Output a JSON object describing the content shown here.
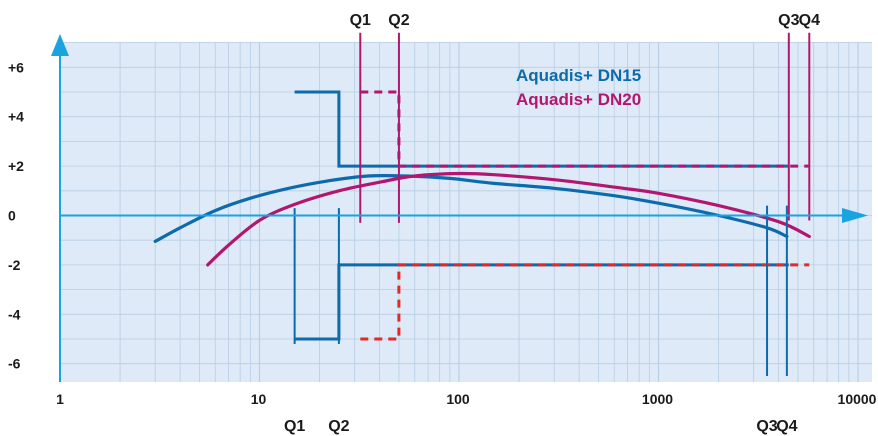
{
  "chart_data": {
    "type": "line",
    "title": "",
    "xlabel": "",
    "ylabel": "",
    "xscale": "log",
    "xlim": [
      1,
      10000
    ],
    "ylim": [
      -7,
      7
    ],
    "grid": true,
    "x_tick_labels": [
      "1",
      "10",
      "100",
      "1000",
      "10000"
    ],
    "y_tick_labels": [
      "+6",
      "+4",
      "+2",
      "0",
      "-2",
      "-4",
      "-6"
    ],
    "legend_position": "top-right",
    "colors": {
      "dn15": "#0d6aad",
      "dn20": "#b3166f",
      "limit_dn20": "#e02a2a",
      "plot_bg": "#deeaf7",
      "grid": "#b8cde3",
      "axis_arrow": "#19a3e0"
    },
    "series": [
      {
        "name": "Aquadis+ DN15",
        "type": "curve",
        "color": "#0d6aad",
        "x": [
          3.0,
          4.0,
          6.0,
          9.0,
          14.0,
          22.0,
          35.0,
          55.0,
          90.0,
          150.0,
          300.0,
          600.0,
          1000.0,
          2000.0,
          3500.0,
          4400.0
        ],
        "y": [
          -1.05,
          -0.5,
          0.2,
          0.7,
          1.1,
          1.4,
          1.6,
          1.6,
          1.5,
          1.3,
          1.1,
          0.8,
          0.5,
          0.0,
          -0.5,
          -0.85
        ]
      },
      {
        "name": "Aquadis+ DN20",
        "type": "curve",
        "color": "#b3166f",
        "x": [
          5.5,
          7.0,
          10.0,
          15.0,
          25.0,
          40.0,
          60.0,
          100.0,
          150.0,
          300.0,
          600.0,
          1000.0,
          2000.0,
          4000.0,
          5700.0
        ],
        "y": [
          -2.0,
          -1.2,
          -0.2,
          0.45,
          1.0,
          1.35,
          1.6,
          1.7,
          1.65,
          1.45,
          1.15,
          0.9,
          0.4,
          -0.25,
          -0.85
        ]
      },
      {
        "name": "",
        "type": "upper-limit",
        "color": "#0d6aad",
        "dashed": false,
        "x": [
          15.0,
          25.0,
          25.0,
          4500.0
        ],
        "y": [
          5,
          5,
          2,
          2
        ]
      },
      {
        "name": "",
        "type": "lower-limit",
        "color": "#0d6aad",
        "dashed": false,
        "x": [
          15.0,
          25.0,
          25.0,
          4500.0
        ],
        "y": [
          -5,
          -5,
          -2,
          -2
        ]
      },
      {
        "name": "",
        "type": "upper-limit",
        "color": "#b3166f",
        "dashed": true,
        "x": [
          32.0,
          50.0,
          50.0,
          5700.0
        ],
        "y": [
          5,
          5,
          2,
          2
        ]
      },
      {
        "name": "",
        "type": "lower-limit",
        "color": "#e02a2a",
        "dashed": true,
        "x": [
          32.0,
          50.0,
          50.0,
          5700.0
        ],
        "y": [
          -5,
          -5,
          -2,
          -2
        ]
      }
    ],
    "annotations": [
      {
        "label": "Q1",
        "x": 15.0,
        "y_from": -5.2,
        "y_to": 0.3,
        "color": "#0d6aad",
        "placement": "bottom"
      },
      {
        "label": "Q2",
        "x": 25.0,
        "y_from": -5.2,
        "y_to": 0.3,
        "color": "#0d6aad",
        "placement": "bottom"
      },
      {
        "label": "Q3",
        "x": 3500.0,
        "y_from": -6.5,
        "y_to": 0.4,
        "color": "#0d6aad",
        "placement": "bottom"
      },
      {
        "label": "Q4",
        "x": 4400.0,
        "y_from": -6.5,
        "y_to": 0.4,
        "color": "#0d6aad",
        "placement": "bottom"
      },
      {
        "label": "Q1",
        "x": 32.0,
        "y_from": -0.3,
        "y_to": 7.4,
        "color": "#b3166f",
        "placement": "top"
      },
      {
        "label": "Q2",
        "x": 50.0,
        "y_from": -0.3,
        "y_to": 7.4,
        "color": "#b3166f",
        "placement": "top"
      },
      {
        "label": "Q3",
        "x": 4500.0,
        "y_from": -0.2,
        "y_to": 7.4,
        "color": "#b3166f",
        "placement": "top"
      },
      {
        "label": "Q4",
        "x": 5700.0,
        "y_from": -0.2,
        "y_to": 7.4,
        "color": "#b3166f",
        "placement": "top"
      }
    ]
  }
}
